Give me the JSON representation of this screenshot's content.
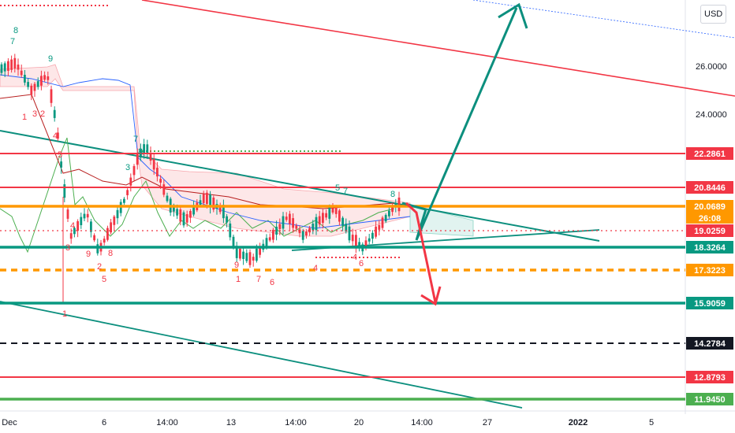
{
  "currency": "USD",
  "colors": {
    "green": "#089981",
    "red": "#f23645",
    "orange": "#ff9800",
    "black": "#131722",
    "teal": "#0c8f7e",
    "limeGreen": "#4caf50"
  },
  "chart_data": {
    "type": "candlestick",
    "title": "",
    "xlabel": "",
    "ylabel": "",
    "y_axis_ticks": [
      "26.0000",
      "24.0000",
      "22.2861",
      "20.8446",
      "20.0689",
      "19.0259",
      "18.3264",
      "17.3223",
      "15.9059",
      "14.2784",
      "12.8793",
      "11.9450"
    ],
    "x_axis_ticks": [
      "Dec",
      "6",
      "14:00",
      "13",
      "14:00",
      "20",
      "14:00",
      "27",
      "2022",
      "5"
    ],
    "price_levels": [
      {
        "label": "22.2861",
        "price": 22.2861,
        "color": "#f23645",
        "style": "solid"
      },
      {
        "label": "20.8446",
        "price": 20.8446,
        "color": "#f23645",
        "style": "solid"
      },
      {
        "label": "20.0689",
        "price": 20.0689,
        "color": "#ff9800",
        "style": "solid"
      },
      {
        "label": "19.0259",
        "price": 19.0259,
        "color": "#f23645",
        "style": "dotted"
      },
      {
        "label": "18.3264",
        "price": 18.3264,
        "color": "#089981",
        "style": "solid"
      },
      {
        "label": "17.3223",
        "price": 17.3223,
        "color": "#ff9800",
        "style": "dashed"
      },
      {
        "label": "15.9059",
        "price": 15.9059,
        "color": "#089981",
        "style": "solid"
      },
      {
        "label": "14.2784",
        "price": 14.2784,
        "color": "#131722",
        "style": "dashed"
      },
      {
        "label": "12.8793",
        "price": 12.8793,
        "color": "#f23645",
        "style": "solid"
      },
      {
        "label": "11.9450",
        "price": 11.945,
        "color": "#4caf50",
        "style": "solid"
      }
    ],
    "countdown": "26:08",
    "scenarios": [
      {
        "direction": "up",
        "color": "#0c8f7e"
      },
      {
        "direction": "down",
        "color": "#f23645"
      }
    ],
    "annotations": [
      "8",
      "9",
      "1",
      "2",
      "3",
      "4",
      "5",
      "6",
      "7"
    ],
    "grid": false,
    "legend": "none"
  }
}
